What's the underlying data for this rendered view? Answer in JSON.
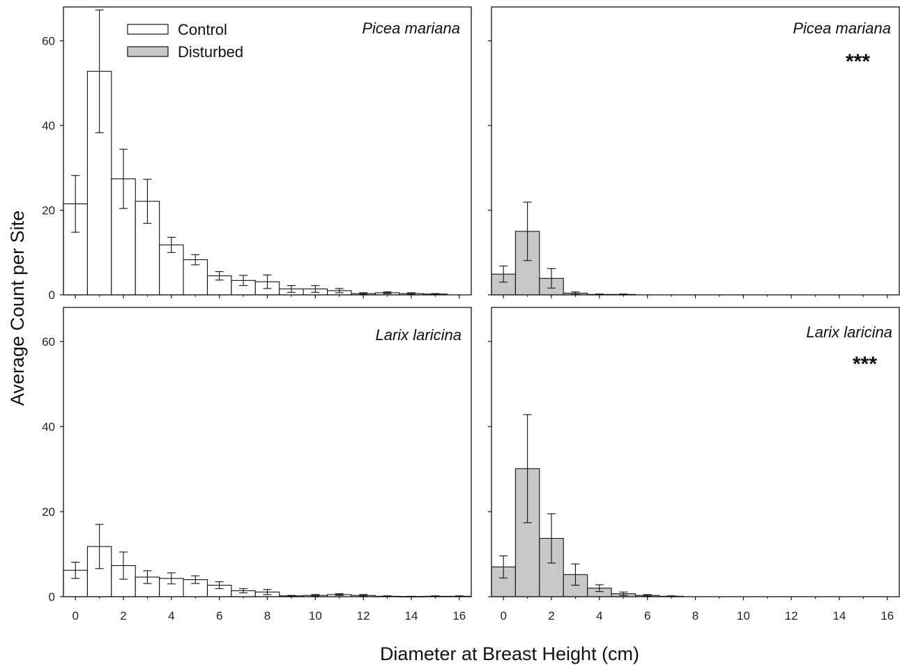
{
  "figure": {
    "ylabel": "Average Count per Site",
    "xlabel": "Diameter at Breast Height (cm)"
  },
  "legend": {
    "items": [
      {
        "label": "Control",
        "color": "#ffffff"
      },
      {
        "label": "Disturbed",
        "color": "#c8c8c8"
      }
    ]
  },
  "colors": {
    "control": "#ffffff",
    "disturbed": "#c8c8c8",
    "stroke": "#111111"
  },
  "chart_data": [
    {
      "type": "bar",
      "panel": "top-left",
      "species": "Picea mariana",
      "treatment": "Control",
      "significance": "",
      "x": [
        0,
        1,
        2,
        3,
        4,
        5,
        6,
        7,
        8,
        9,
        10,
        11,
        12,
        13,
        14,
        15
      ],
      "values": [
        21.5,
        52.8,
        27.4,
        22.1,
        11.8,
        8.3,
        4.5,
        3.4,
        3.1,
        1.4,
        1.4,
        1.0,
        0.3,
        0.5,
        0.3,
        0.2
      ],
      "errors": [
        6.7,
        14.5,
        7.0,
        5.2,
        1.8,
        1.2,
        1.0,
        1.2,
        1.6,
        0.8,
        0.8,
        0.5,
        0.2,
        0.2,
        0.2,
        0.1
      ],
      "xlim": [
        -0.5,
        16.5
      ],
      "ylim": [
        0,
        68
      ],
      "xticks": [
        0,
        2,
        4,
        6,
        8,
        10,
        12,
        14,
        16
      ],
      "yticks": [
        0,
        20,
        40,
        60
      ],
      "show_xtick_labels": false,
      "show_ytick_labels": true
    },
    {
      "type": "bar",
      "panel": "top-right",
      "species": "Picea mariana",
      "treatment": "Disturbed",
      "significance": "***",
      "x": [
        0,
        1,
        2,
        3,
        4,
        5
      ],
      "values": [
        4.9,
        15.0,
        3.9,
        0.4,
        0.1,
        0.1
      ],
      "errors": [
        1.9,
        6.9,
        2.3,
        0.3,
        0.1,
        0.1
      ],
      "xlim": [
        -0.5,
        16.5
      ],
      "ylim": [
        0,
        68
      ],
      "xticks": [
        0,
        2,
        4,
        6,
        8,
        10,
        12,
        14,
        16
      ],
      "yticks": [
        0,
        20,
        40,
        60
      ],
      "show_xtick_labels": false,
      "show_ytick_labels": false
    },
    {
      "type": "bar",
      "panel": "bottom-left",
      "species": "Larix laricina",
      "treatment": "Control",
      "significance": "",
      "x": [
        0,
        1,
        2,
        3,
        4,
        5,
        6,
        7,
        8,
        9,
        10,
        11,
        12,
        13,
        14,
        15,
        16
      ],
      "values": [
        6.2,
        11.8,
        7.3,
        4.6,
        4.3,
        4.0,
        2.7,
        1.4,
        1.1,
        0.2,
        0.3,
        0.5,
        0.3,
        0.1,
        0.05,
        0.1,
        0.1
      ],
      "errors": [
        1.9,
        5.2,
        3.2,
        1.5,
        1.3,
        0.9,
        0.8,
        0.5,
        0.6,
        0.1,
        0.2,
        0.2,
        0.2,
        0.1,
        0.05,
        0.1,
        0.1
      ],
      "xlim": [
        -0.5,
        16.5
      ],
      "ylim": [
        0,
        68
      ],
      "xticks": [
        0,
        2,
        4,
        6,
        8,
        10,
        12,
        14,
        16
      ],
      "yticks": [
        0,
        20,
        40,
        60
      ],
      "show_xtick_labels": true,
      "show_ytick_labels": true
    },
    {
      "type": "bar",
      "panel": "bottom-right",
      "species": "Larix laricina",
      "treatment": "Disturbed",
      "significance": "***",
      "x": [
        0,
        1,
        2,
        3,
        4,
        5,
        6,
        7
      ],
      "values": [
        7.0,
        30.1,
        13.7,
        5.2,
        2.0,
        0.7,
        0.3,
        0.1
      ],
      "errors": [
        2.6,
        12.7,
        5.8,
        2.5,
        0.8,
        0.4,
        0.2,
        0.1
      ],
      "xlim": [
        -0.5,
        16.5
      ],
      "ylim": [
        0,
        68
      ],
      "xticks": [
        0,
        2,
        4,
        6,
        8,
        10,
        12,
        14,
        16
      ],
      "yticks": [
        0,
        20,
        40,
        60
      ],
      "show_xtick_labels": true,
      "show_ytick_labels": false
    }
  ]
}
